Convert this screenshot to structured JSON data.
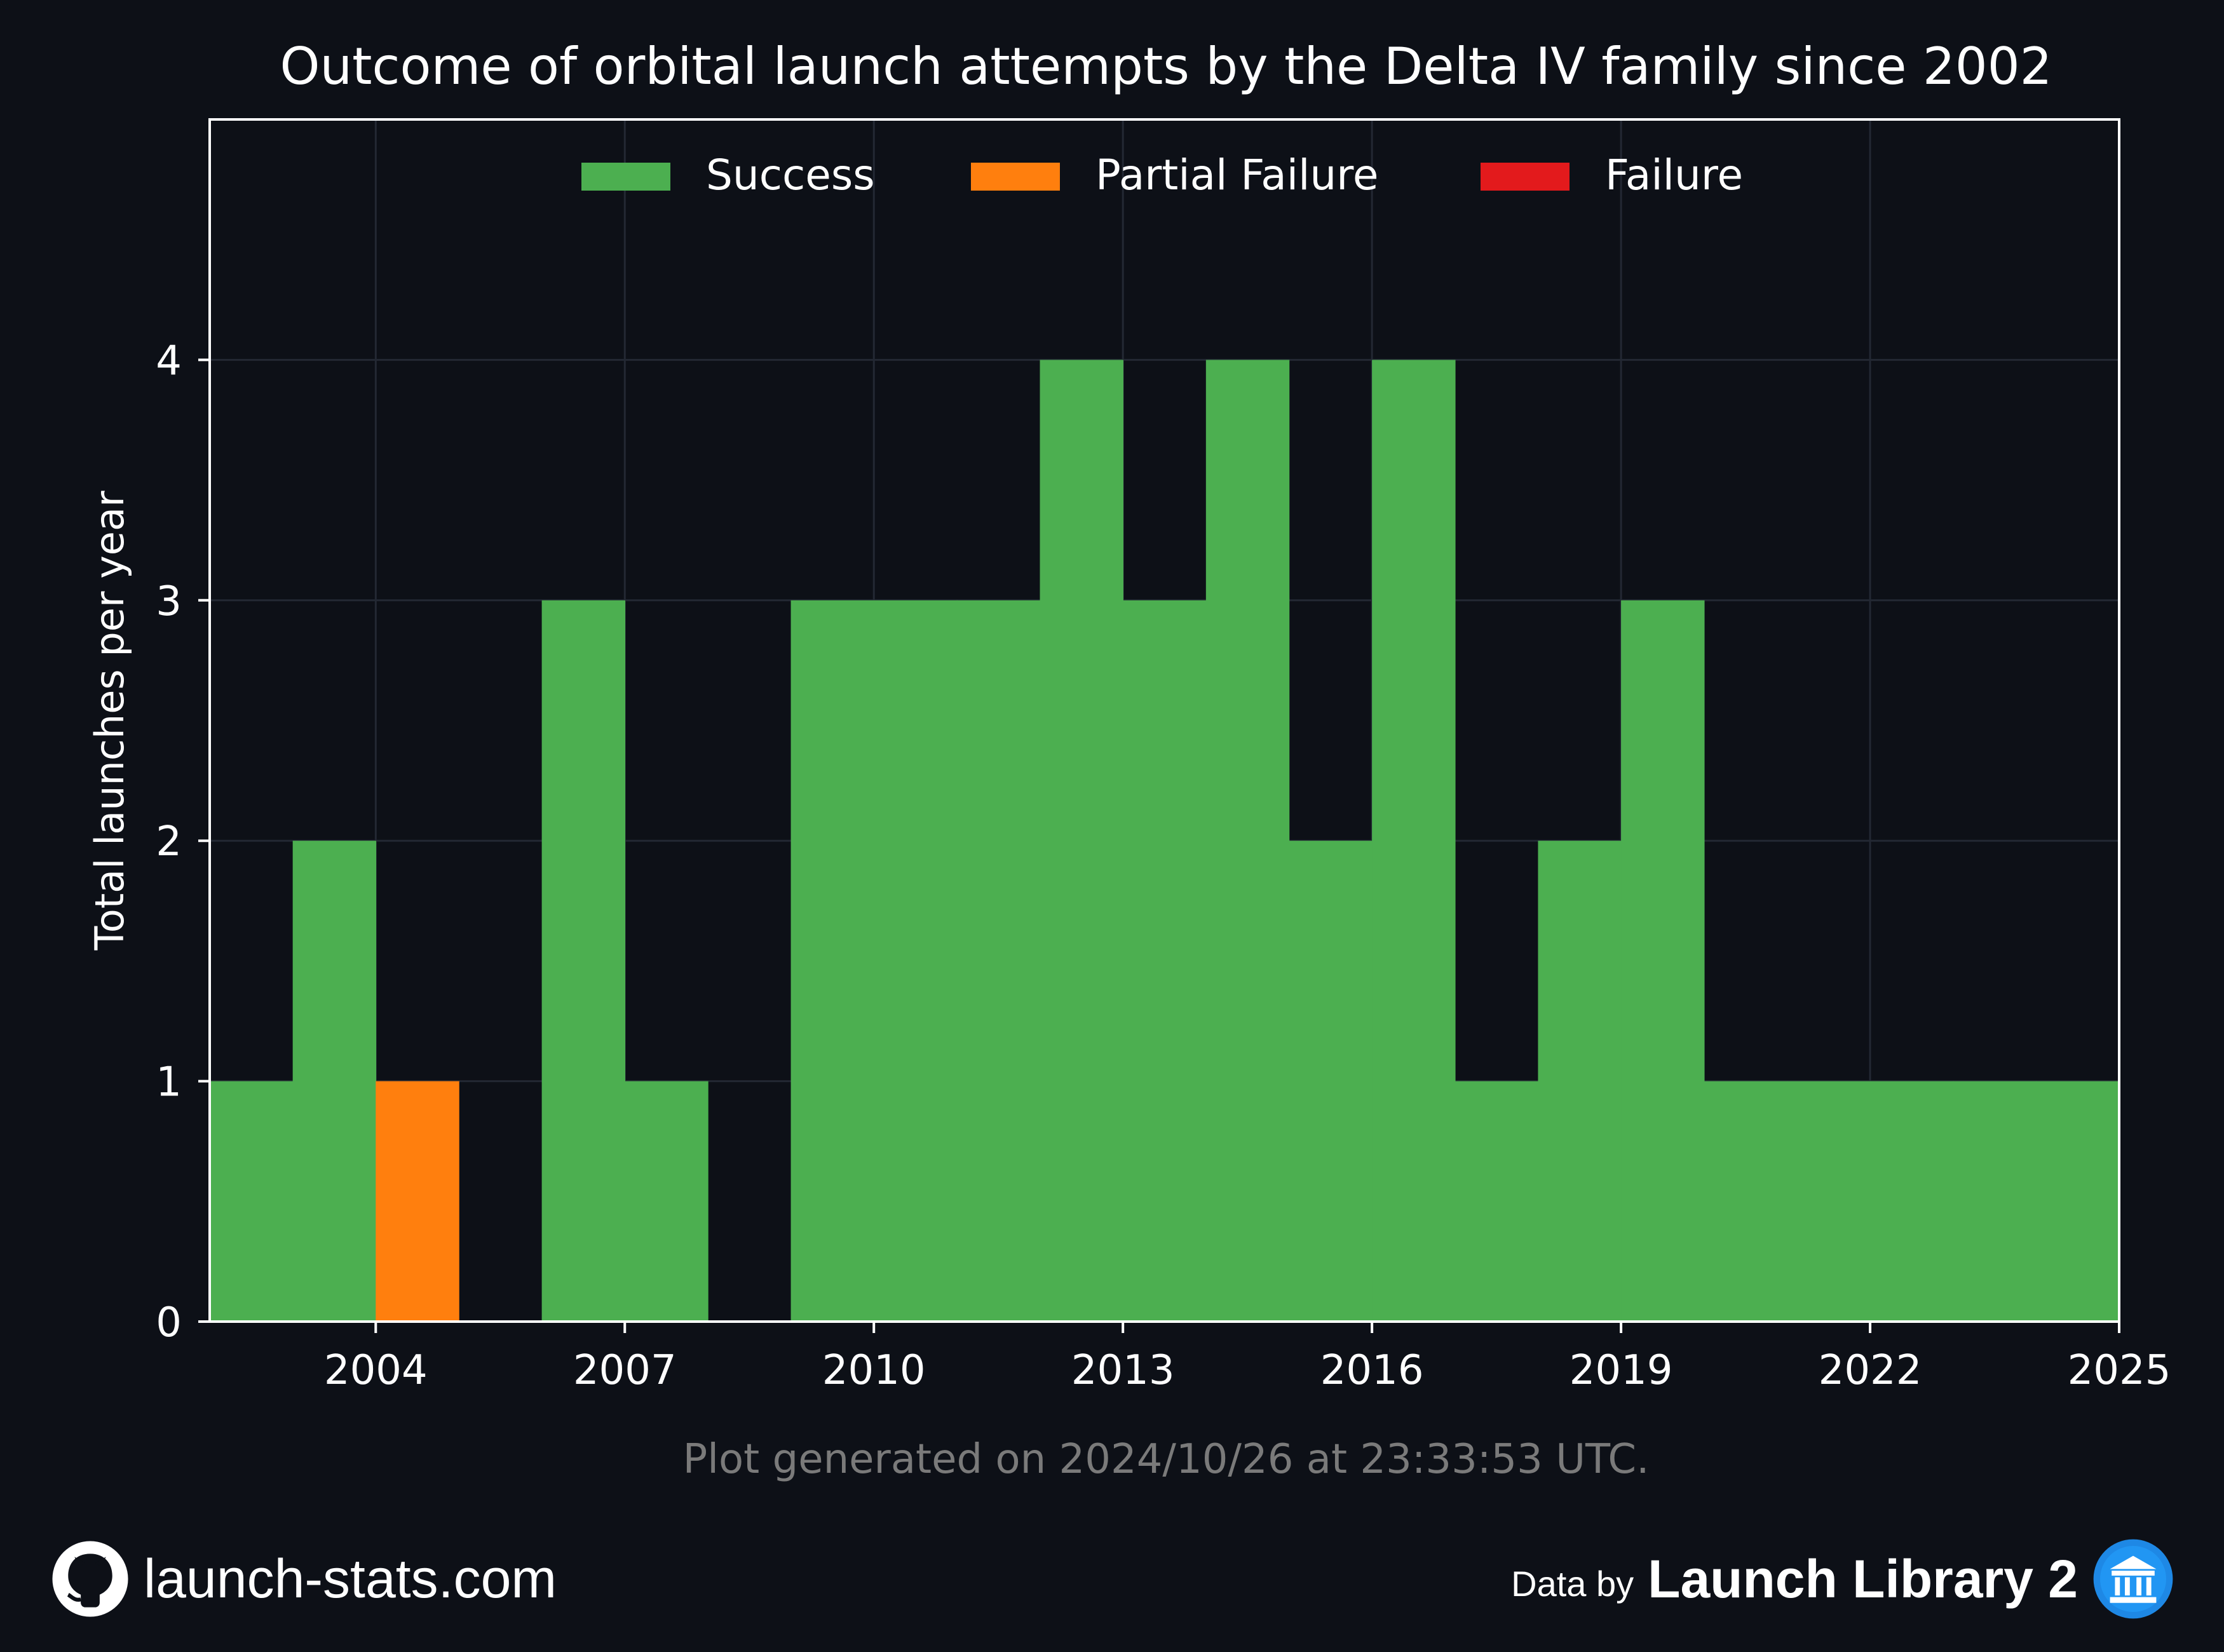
{
  "chart_data": {
    "type": "bar",
    "stacked": true,
    "title": "Outcome of orbital launch attempts by the Delta IV family since 2002",
    "xlabel": "",
    "ylabel": "Total launches per year",
    "x": [
      2002,
      2003,
      2004,
      2005,
      2006,
      2007,
      2008,
      2009,
      2010,
      2011,
      2012,
      2013,
      2014,
      2015,
      2016,
      2017,
      2018,
      2019,
      2020,
      2021,
      2022,
      2023,
      2024
    ],
    "series": [
      {
        "name": "Success",
        "color": "#4caf50",
        "values": [
          1,
          2,
          0,
          0,
          3,
          1,
          0,
          3,
          3,
          3,
          4,
          3,
          4,
          2,
          4,
          1,
          2,
          3,
          1,
          1,
          1,
          1,
          1
        ]
      },
      {
        "name": "Partial Failure",
        "color": "#ff7f0e",
        "values": [
          0,
          0,
          1,
          0,
          0,
          0,
          0,
          0,
          0,
          0,
          0,
          0,
          0,
          0,
          0,
          0,
          0,
          0,
          0,
          0,
          0,
          0,
          0
        ]
      },
      {
        "name": "Failure",
        "color": "#e31a1c",
        "values": [
          0,
          0,
          0,
          0,
          0,
          0,
          0,
          0,
          0,
          0,
          0,
          0,
          0,
          0,
          0,
          0,
          0,
          0,
          0,
          0,
          0,
          0,
          0
        ]
      }
    ],
    "xlim": [
      2002,
      2025
    ],
    "ylim": [
      0,
      5
    ],
    "xticks": [
      2004,
      2007,
      2010,
      2013,
      2016,
      2019,
      2022,
      2025
    ],
    "yticks": [
      0,
      1,
      2,
      3,
      4
    ],
    "grid": true,
    "legend": "top-center",
    "background": "#0d1017"
  },
  "caption": "Plot generated on 2024/10/26 at 23:33:53 UTC.",
  "footer": {
    "site": "launch-stats.com",
    "data_by": "Data by",
    "source": "Launch Library 2",
    "site_icon": "github-icon",
    "source_icon": "launch-library-icon"
  }
}
